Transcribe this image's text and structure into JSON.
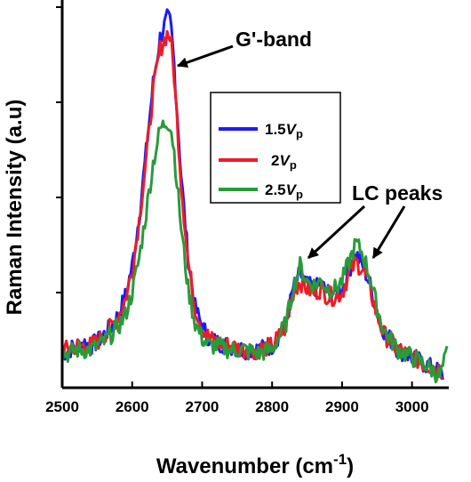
{
  "chart_data": {
    "type": "line",
    "xlabel": "Wavenumber (cm",
    "xlabel_sup": "-1",
    "xlabel_close": ")",
    "ylabel": "Raman Intensity (a.u)",
    "xlim": [
      2500,
      3050
    ],
    "ylim": [
      0,
      1
    ],
    "x_ticks": [
      2500,
      2600,
      2700,
      2800,
      2900,
      3000
    ],
    "y_tick_labels": false,
    "legend_placement": "center-right",
    "series": [
      {
        "name_main": "1.5",
        "name_ital": "V",
        "name_sub": "p",
        "color": "#1a1aff",
        "x": [
          2500,
          2510,
          2520,
          2530,
          2540,
          2550,
          2560,
          2570,
          2580,
          2590,
          2600,
          2610,
          2620,
          2630,
          2640,
          2650,
          2655,
          2660,
          2670,
          2680,
          2690,
          2700,
          2710,
          2720,
          2740,
          2760,
          2780,
          2800,
          2820,
          2830,
          2840,
          2850,
          2860,
          2870,
          2880,
          2890,
          2900,
          2910,
          2920,
          2930,
          2940,
          2950,
          2960,
          2980,
          3000,
          3020,
          3040,
          3045
        ],
        "y": [
          0.09,
          0.1,
          0.11,
          0.12,
          0.11,
          0.12,
          0.14,
          0.16,
          0.19,
          0.24,
          0.32,
          0.45,
          0.62,
          0.8,
          0.92,
          0.97,
          0.96,
          0.85,
          0.56,
          0.34,
          0.21,
          0.16,
          0.13,
          0.12,
          0.11,
          0.1,
          0.1,
          0.11,
          0.17,
          0.26,
          0.3,
          0.27,
          0.26,
          0.27,
          0.25,
          0.25,
          0.26,
          0.31,
          0.35,
          0.32,
          0.27,
          0.2,
          0.15,
          0.1,
          0.08,
          0.06,
          0.04,
          0.03
        ]
      },
      {
        "name_main": "2",
        "name_ital": "V",
        "name_sub": "p",
        "color": "#ee1c25",
        "x": [
          2500,
          2510,
          2520,
          2530,
          2540,
          2550,
          2560,
          2570,
          2580,
          2590,
          2600,
          2610,
          2620,
          2630,
          2640,
          2650,
          2655,
          2660,
          2670,
          2680,
          2690,
          2700,
          2710,
          2720,
          2740,
          2760,
          2780,
          2800,
          2820,
          2830,
          2840,
          2850,
          2860,
          2870,
          2880,
          2890,
          2900,
          2910,
          2920,
          2930,
          2940,
          2950,
          2960,
          2980,
          3000,
          3020,
          3040,
          3045
        ],
        "y": [
          0.1,
          0.1,
          0.11,
          0.11,
          0.11,
          0.12,
          0.14,
          0.16,
          0.19,
          0.23,
          0.31,
          0.44,
          0.6,
          0.78,
          0.89,
          0.93,
          0.92,
          0.82,
          0.54,
          0.33,
          0.21,
          0.16,
          0.13,
          0.12,
          0.11,
          0.1,
          0.1,
          0.11,
          0.16,
          0.25,
          0.28,
          0.26,
          0.25,
          0.26,
          0.24,
          0.24,
          0.25,
          0.3,
          0.33,
          0.31,
          0.26,
          0.19,
          0.14,
          0.1,
          0.08,
          0.06,
          0.05,
          0.04
        ]
      },
      {
        "name_main": "2.5",
        "name_ital": "V",
        "name_sub": "p",
        "color": "#2a9a3a",
        "x": [
          2500,
          2510,
          2520,
          2530,
          2540,
          2550,
          2560,
          2570,
          2580,
          2590,
          2600,
          2610,
          2620,
          2630,
          2640,
          2650,
          2655,
          2660,
          2670,
          2680,
          2690,
          2700,
          2710,
          2720,
          2740,
          2760,
          2780,
          2800,
          2820,
          2830,
          2840,
          2850,
          2860,
          2870,
          2880,
          2890,
          2900,
          2910,
          2920,
          2930,
          2940,
          2950,
          2960,
          2980,
          3000,
          3020,
          3040,
          3050
        ],
        "y": [
          0.09,
          0.09,
          0.1,
          0.1,
          0.1,
          0.11,
          0.12,
          0.14,
          0.16,
          0.19,
          0.25,
          0.34,
          0.46,
          0.59,
          0.68,
          0.7,
          0.69,
          0.62,
          0.42,
          0.26,
          0.17,
          0.13,
          0.11,
          0.11,
          0.1,
          0.1,
          0.09,
          0.1,
          0.17,
          0.26,
          0.32,
          0.28,
          0.27,
          0.28,
          0.26,
          0.26,
          0.28,
          0.33,
          0.38,
          0.35,
          0.29,
          0.21,
          0.15,
          0.1,
          0.08,
          0.06,
          0.03,
          0.09
        ]
      }
    ],
    "annotations": [
      {
        "text": "G'-band"
      },
      {
        "text": "LC peaks"
      }
    ]
  }
}
